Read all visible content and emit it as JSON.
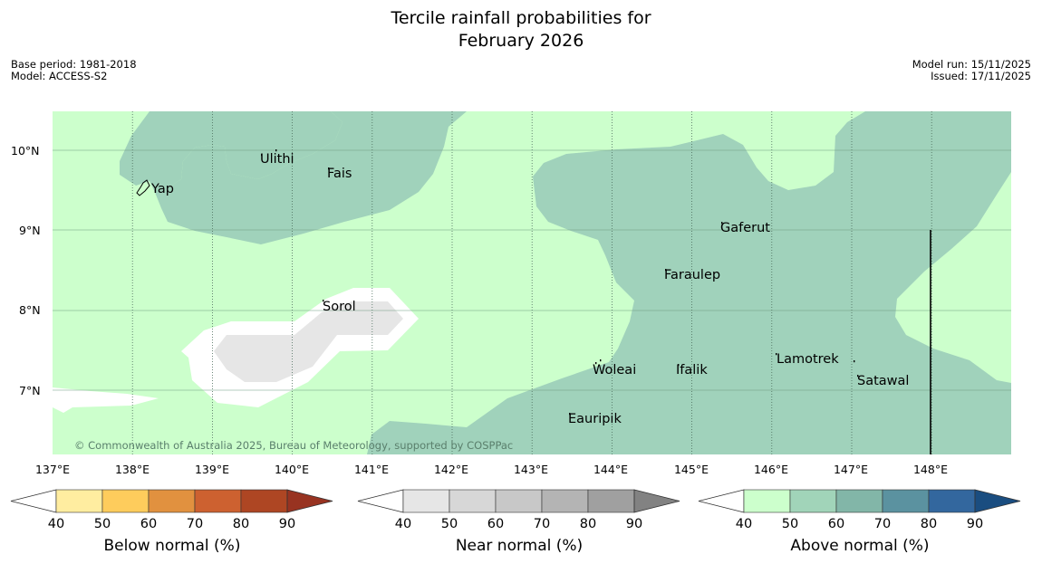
{
  "title": {
    "line1": "Tercile rainfall probabilities for",
    "line2": "February 2026"
  },
  "meta_left": {
    "base_period": "Base period: 1981-2018",
    "model": "Model: ACCESS-S2"
  },
  "meta_right": {
    "model_run": "Model run: 15/11/2025",
    "issued": "Issued: 17/11/2025"
  },
  "map": {
    "lon_labels": [
      "137°E",
      "138°E",
      "139°E",
      "140°E",
      "141°E",
      "142°E",
      "143°E",
      "144°E",
      "145°E",
      "146°E",
      "147°E",
      "148°E"
    ],
    "lat_labels": [
      "10°N",
      "9°N",
      "8°N",
      "7°N"
    ],
    "places": [
      {
        "name": "Yap"
      },
      {
        "name": "Ulithi"
      },
      {
        "name": "Fais"
      },
      {
        "name": "Sorol"
      },
      {
        "name": "Gaferut"
      },
      {
        "name": "Faraulep"
      },
      {
        "name": "Woleai"
      },
      {
        "name": "Ifalik"
      },
      {
        "name": "Lamotrek"
      },
      {
        "name": "Satawal"
      },
      {
        "name": "Eauripik"
      }
    ],
    "copyright": "© Commonwealth of Australia 2025, Bureau of Meteorology, supported by COSPPac",
    "colors": {
      "above_50": "#ccffcc",
      "above_60": "#a0d2bb",
      "near_50": "#e6e6e6",
      "neutral": "#ffffff"
    }
  },
  "colorbars": [
    {
      "label": "Below normal (%)",
      "ticks": [
        "40",
        "50",
        "60",
        "70",
        "80",
        "90"
      ],
      "colors": [
        "#ffeda0",
        "#fecc5c",
        "#e1913f",
        "#cd6130",
        "#ae4623",
        "#983321"
      ]
    },
    {
      "label": "Near normal (%)",
      "ticks": [
        "40",
        "50",
        "60",
        "70",
        "80",
        "90"
      ],
      "colors": [
        "#e6e6e6",
        "#d7d7d7",
        "#c8c8c8",
        "#b4b4b4",
        "#a0a0a0",
        "#828282"
      ]
    },
    {
      "label": "Above normal (%)",
      "ticks": [
        "40",
        "50",
        "60",
        "70",
        "80",
        "90"
      ],
      "colors": [
        "#ccffcc",
        "#a1d4b9",
        "#82b6a8",
        "#5b92a0",
        "#33679e",
        "#1a4d80"
      ]
    }
  ]
}
